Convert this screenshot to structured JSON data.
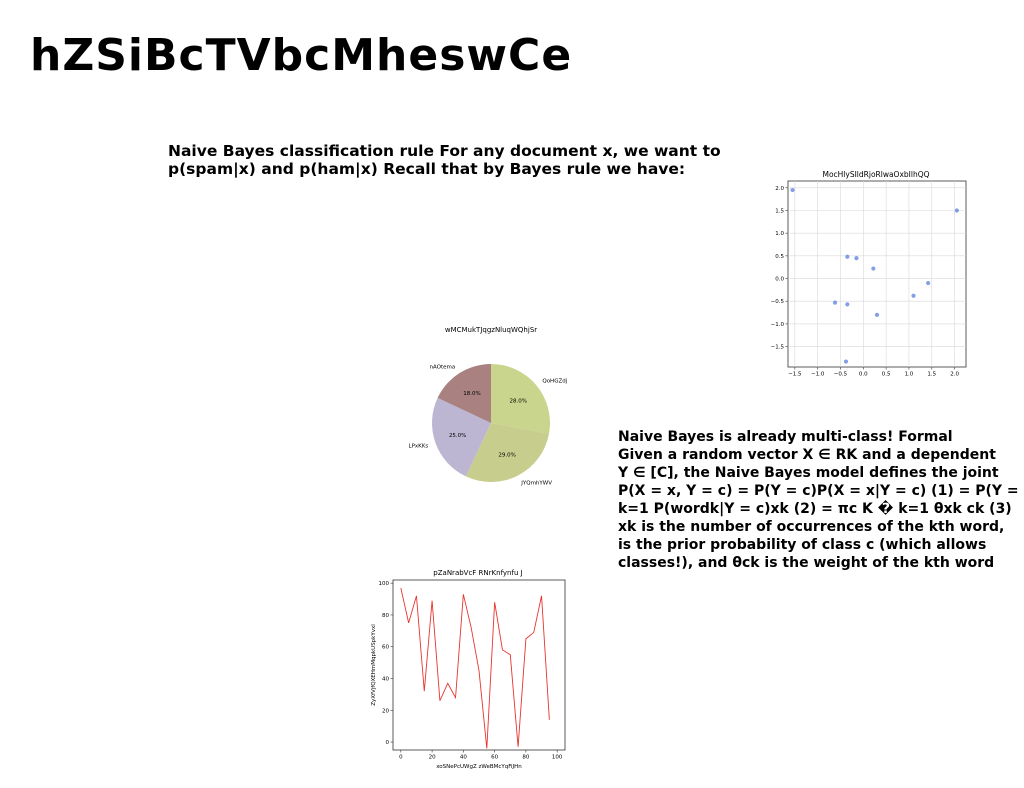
{
  "page": {
    "title": "hZSiBcTVbcMheswCe",
    "paragraph_1": [
      "Naive Bayes classification rule For any document x, we want to",
      "p(spam|x) and p(ham|x) Recall that by Bayes rule we have:"
    ],
    "paragraph_2": [
      "Naive Bayes is already multi-class! Formal",
      "Given a random vector X ∈ RK and a dependent",
      "Y ∈ [C], the Naive Bayes model defines the joint",
      "P(X = x, Y = c) = P(Y = c)P(X = x|Y = c) (1) = P(Y = c) K",
      "k=1 P(wordk|Y = c)xk (2) = πc K � k=1 θxk ck (3)",
      "xk is the number of occurrences of the kth word,",
      "is the prior probability of class c (which allows",
      "classes!), and θck is the weight of the kth word"
    ]
  },
  "chart_data": [
    {
      "type": "scatter",
      "title": "MocHlySIldRjoRlwaOxbIlhQQ",
      "xlabel": "",
      "ylabel": "",
      "xlim": [
        -1.65,
        2.25
      ],
      "ylim": [
        -1.95,
        2.15
      ],
      "xticks": [
        -1.5,
        -1.0,
        -0.5,
        0.0,
        0.5,
        1.0,
        1.5,
        2.0
      ],
      "yticks": [
        -1.5,
        -1.0,
        -0.5,
        0.0,
        0.5,
        1.0,
        1.5,
        2.0
      ],
      "tick_labels_x": [
        "−1.5",
        "−1.0",
        "−0.5",
        "0.0",
        "0.5",
        "1.0",
        "1.5",
        "2.0"
      ],
      "tick_labels_y": [
        "−1.5",
        "−1.0",
        "−0.5",
        "0.0",
        "0.5",
        "1.0",
        "1.5",
        "2.0"
      ],
      "grid": true,
      "color": "#6f8fe0",
      "x": [
        -1.55,
        -0.35,
        -0.15,
        0.22,
        -0.62,
        -0.35,
        0.3,
        1.1,
        1.42,
        2.05,
        -0.38
      ],
      "y": [
        1.95,
        0.48,
        0.45,
        0.22,
        -0.53,
        -0.57,
        -0.8,
        -0.38,
        -0.1,
        1.5,
        -1.83
      ]
    },
    {
      "type": "pie",
      "title": "wMCMukTJqgzNluqWQhjSr",
      "labels": [
        "QoHGZdj",
        "JYQmhYWV",
        "LPxKKs",
        "nAOtema"
      ],
      "values": [
        28.0,
        29.0,
        25.0,
        18.0
      ],
      "value_labels": [
        "28.0%",
        "29.0%",
        "25.0%",
        "18.0%"
      ],
      "colors": [
        "#c9d48c",
        "#c7cd8d",
        "#bdb6d3",
        "#a98180"
      ],
      "start_angle_deg": 90,
      "direction": "clockwise"
    },
    {
      "type": "line",
      "title": "pZaNrabVcF RNrKnfynfu J",
      "xlabel": "xoSNePcUWgZ zWeBMcYqFiJHn",
      "ylabel": "ZyXfVjfQXEHmMqpkUSpkYvxl",
      "xlim": [
        -5,
        105
      ],
      "ylim": [
        -5,
        102
      ],
      "xticks": [
        0,
        20,
        40,
        60,
        80,
        100
      ],
      "yticks": [
        0,
        20,
        40,
        60,
        80,
        100
      ],
      "color": "#e8342e",
      "x": [
        0,
        5,
        10,
        15,
        20,
        25,
        30,
        35,
        40,
        45,
        50,
        55,
        60,
        65,
        70,
        75,
        80,
        85,
        90,
        95,
        100
      ],
      "y": [
        97,
        75,
        92,
        32,
        89,
        26,
        37,
        28,
        93,
        72,
        45,
        -4,
        88,
        58,
        55,
        -3,
        65,
        69,
        92,
        14,
        null
      ]
    }
  ]
}
